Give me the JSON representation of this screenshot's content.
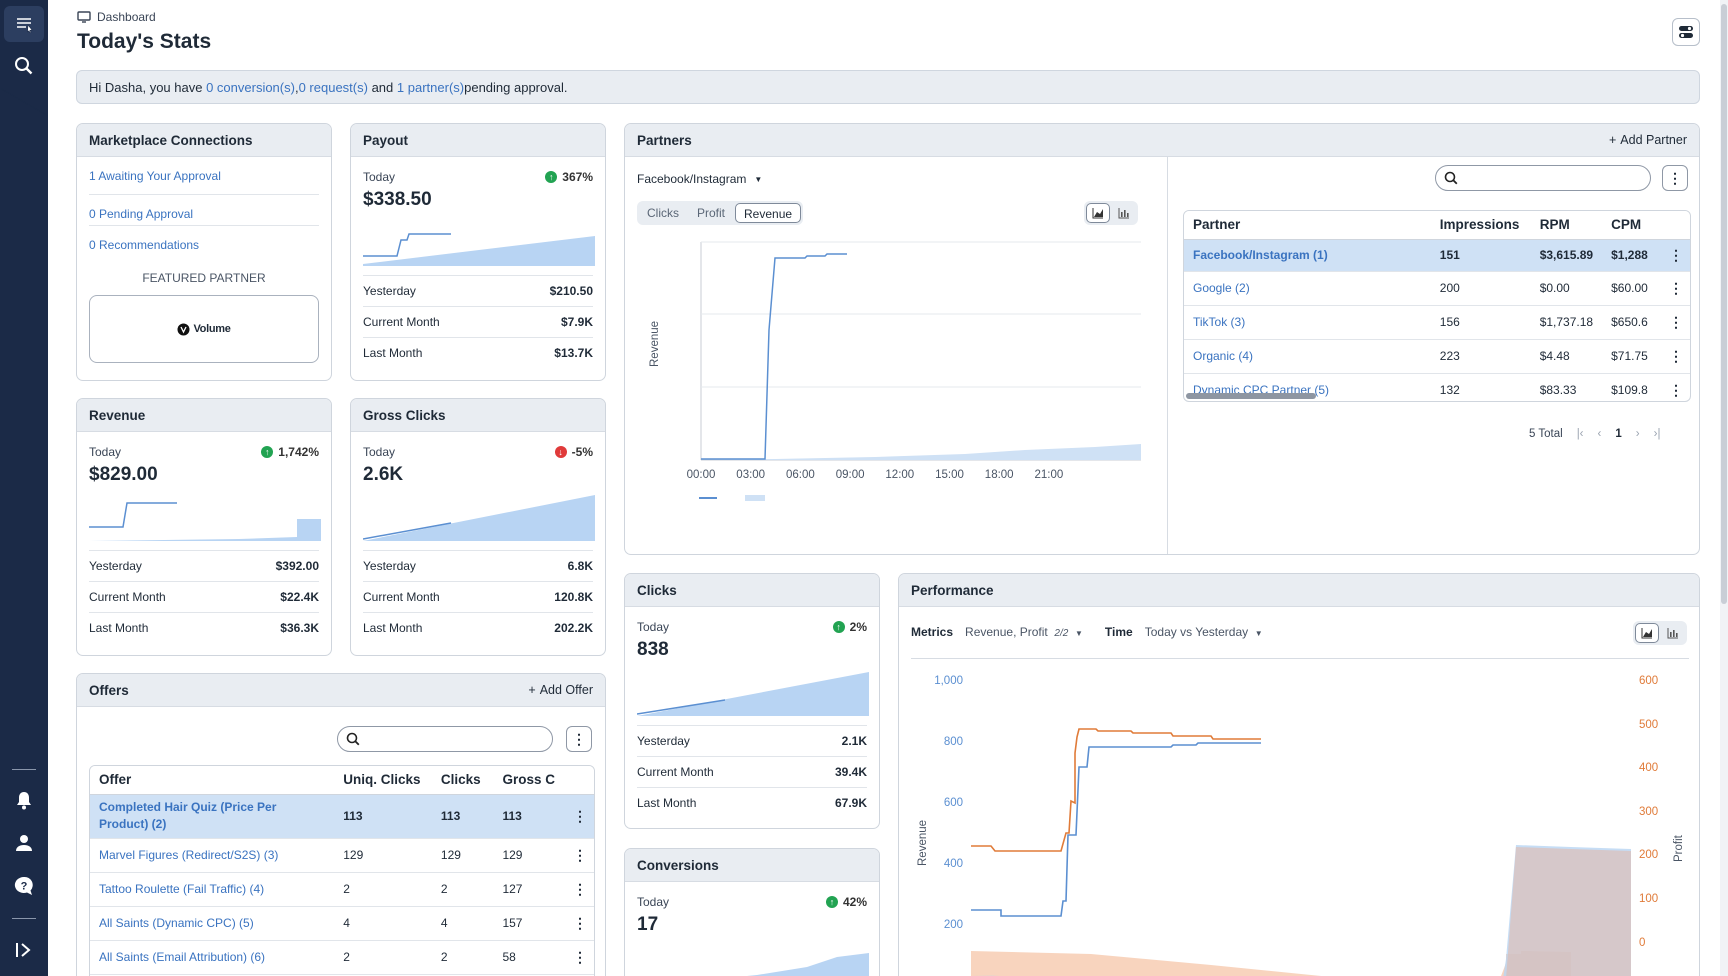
{
  "breadcrumb": "Dashboard",
  "page_title": "Today's Stats",
  "alert": {
    "pre": "Hi Dasha, you have ",
    "conv": "0 conversion(s)",
    "sep1": ", ",
    "req": "0 request(s)",
    "sep2": " and ",
    "partners": "1 partner(s)",
    "post": " pending approval."
  },
  "marketplace": {
    "title": "Marketplace Connections",
    "links": [
      "1 Awaiting Your Approval",
      "0 Pending Approval",
      "0 Recommendations"
    ],
    "featured_label": "FEATURED PARTNER",
    "featured_name": "Volume"
  },
  "payout": {
    "title": "Payout",
    "today_label": "Today",
    "change": "367%",
    "value": "$338.50",
    "rows": [
      [
        "Yesterday",
        "$210.50"
      ],
      [
        "Current Month",
        "$7.9K"
      ],
      [
        "Last Month",
        "$13.7K"
      ]
    ]
  },
  "revenue": {
    "title": "Revenue",
    "today_label": "Today",
    "change": "1,742%",
    "value": "$829.00",
    "rows": [
      [
        "Yesterday",
        "$392.00"
      ],
      [
        "Current Month",
        "$22.4K"
      ],
      [
        "Last Month",
        "$36.3K"
      ]
    ]
  },
  "gross_clicks": {
    "title": "Gross Clicks",
    "today_label": "Today",
    "change": "-5%",
    "value": "2.6K",
    "rows": [
      [
        "Yesterday",
        "6.8K"
      ],
      [
        "Current Month",
        "120.8K"
      ],
      [
        "Last Month",
        "202.2K"
      ]
    ]
  },
  "clicks": {
    "title": "Clicks",
    "today_label": "Today",
    "change": "2%",
    "value": "838",
    "rows": [
      [
        "Yesterday",
        "2.1K"
      ],
      [
        "Current Month",
        "39.4K"
      ],
      [
        "Last Month",
        "67.9K"
      ]
    ]
  },
  "conversions": {
    "title": "Conversions",
    "today_label": "Today",
    "change": "42%",
    "value": "17"
  },
  "offers": {
    "title": "Offers",
    "add_label": "Add Offer",
    "columns": [
      "Offer",
      "Uniq. Clicks",
      "Clicks",
      "Gross C"
    ],
    "rows": [
      [
        "Completed Hair Quiz (Price Per Product) (2)",
        "113",
        "113",
        "113"
      ],
      [
        "Marvel Figures (Redirect/S2S) (3)",
        "129",
        "129",
        "129"
      ],
      [
        "Tattoo Roulette (Fail Traffic) (4)",
        "2",
        "2",
        "127"
      ],
      [
        "All Saints (Dynamic CPC) (5)",
        "4",
        "4",
        "157"
      ],
      [
        "All Saints (Email Attribution) (6)",
        "2",
        "2",
        "58"
      ]
    ]
  },
  "partners": {
    "title": "Partners",
    "add_label": "Add Partner",
    "source": "Facebook/Instagram",
    "tabs": [
      "Clicks",
      "Profit",
      "Revenue"
    ],
    "active_tab": "Revenue",
    "y_label": "Revenue",
    "x_ticks": [
      "00:00",
      "03:00",
      "06:00",
      "09:00",
      "12:00",
      "15:00",
      "18:00",
      "21:00"
    ],
    "columns": [
      "Partner",
      "Impressions",
      "RPM",
      "CPM"
    ],
    "rows": [
      [
        "Facebook/Instagram (1)",
        "151",
        "$3,615.89",
        "$1,288"
      ],
      [
        "Google (2)",
        "200",
        "$0.00",
        "$60.00"
      ],
      [
        "TikTok (3)",
        "156",
        "$1,737.18",
        "$650.6"
      ],
      [
        "Organic (4)",
        "223",
        "$4.48",
        "$71.75"
      ],
      [
        "Dynamic CPC Partner (5)",
        "132",
        "$83.33",
        "$109.8"
      ]
    ],
    "total": "5 Total",
    "page": "1"
  },
  "performance": {
    "title": "Performance",
    "metrics_label": "Metrics",
    "metrics_value": "Revenue, Profit",
    "metrics_count": "2/2",
    "time_label": "Time",
    "time_value": "Today vs Yesterday",
    "y_left_label": "Revenue",
    "y_right_label": "Profit",
    "y_left_ticks": [
      "1,000",
      "800",
      "600",
      "400",
      "200"
    ],
    "y_right_ticks": [
      "600",
      "500",
      "400",
      "300",
      "200",
      "100",
      "0"
    ],
    "colors": {
      "revenue": "#5b8fd1",
      "profit": "#e07b39"
    }
  }
}
